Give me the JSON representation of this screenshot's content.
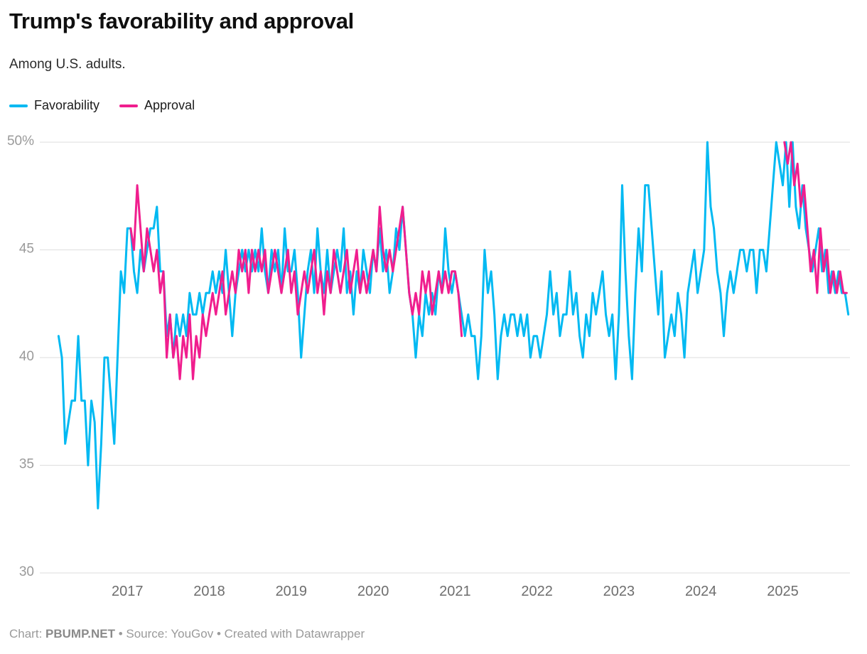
{
  "header": {
    "title": "Trump's favorability and approval",
    "subtitle": "Among U.S. adults."
  },
  "footer": {
    "chart_label_prefix": "Chart: ",
    "brand": "PBUMP.NET",
    "rest": " • Source: YouGov • Created with Datawrapper"
  },
  "chart_data": {
    "type": "line",
    "title": "Trump's favorability and approval",
    "subtitle": "Among U.S. adults.",
    "legend_position": "top-left",
    "grid": "horizontal",
    "grid_color": "#dedede",
    "ytick_label_color": "#9a9a9a",
    "xtick_label_color": "#6e6e6e",
    "xlabel": "",
    "ylabel": "",
    "xlim": [
      2016.0,
      2025.82
    ],
    "ylim": [
      30,
      50
    ],
    "yticks": [
      30,
      35,
      40,
      45,
      50
    ],
    "ytick_labels": [
      "30",
      "35",
      "40",
      "45",
      "50%"
    ],
    "xticks": [
      2017,
      2018,
      2019,
      2020,
      2021,
      2022,
      2023,
      2024,
      2025
    ],
    "xtick_labels": [
      "2017",
      "2018",
      "2019",
      "2020",
      "2021",
      "2022",
      "2023",
      "2024",
      "2025"
    ],
    "series": [
      {
        "name": "Favorability",
        "color": "#00b9f2",
        "segments": [
          {
            "start": 2016.16,
            "step": 0.04,
            "values": [
              41,
              40,
              36,
              37,
              38,
              38,
              41,
              38,
              38,
              35,
              38,
              37,
              33,
              36,
              40,
              40,
              38,
              36,
              40,
              44,
              43,
              46,
              46,
              44,
              43,
              45,
              44,
              45,
              46,
              46,
              47,
              44,
              44,
              41,
              42,
              40,
              42,
              41,
              42,
              41,
              43,
              42,
              42,
              43,
              42,
              43,
              43,
              44,
              43,
              44,
              43,
              45,
              43,
              41,
              43,
              44,
              45,
              44,
              45,
              44,
              45,
              44,
              46,
              44,
              43,
              45,
              44,
              45,
              43,
              46,
              44,
              44,
              45,
              43,
              40,
              42,
              44,
              45,
              43,
              46,
              44,
              43,
              45,
              43,
              44,
              45,
              44,
              46,
              43,
              44,
              42,
              44,
              43,
              45,
              44,
              43,
              45,
              44,
              46,
              44,
              45,
              43,
              44,
              46,
              45,
              47,
              45,
              43,
              42,
              40,
              42,
              41,
              43,
              42,
              43,
              42,
              44,
              43,
              46,
              44,
              43,
              44,
              43,
              42,
              41,
              42,
              41,
              41,
              39,
              41,
              45,
              43,
              44,
              42,
              39,
              41,
              42,
              41,
              42,
              42,
              41,
              42,
              41,
              42,
              40,
              41,
              41,
              40,
              41,
              42,
              44,
              42,
              43,
              41,
              42,
              42,
              44,
              42,
              43,
              41,
              40,
              42,
              41,
              43,
              42,
              43,
              44,
              42,
              41,
              42,
              39,
              42,
              48,
              44,
              41,
              39,
              43,
              46,
              44,
              48,
              48,
              46,
              44,
              42,
              44,
              40,
              41,
              42,
              41,
              43,
              42,
              40,
              43,
              44,
              45,
              43,
              44,
              45,
              50,
              47,
              46,
              44,
              43,
              41,
              43,
              44,
              43,
              44,
              45,
              45,
              44,
              45,
              45,
              43,
              45,
              45,
              44,
              46,
              48,
              50,
              49,
              48,
              50,
              47,
              50,
              47,
              46,
              48,
              46,
              45,
              44,
              45,
              46,
              44,
              45,
              43,
              44,
              43,
              44,
              43,
              43,
              42
            ]
          }
        ]
      },
      {
        "name": "Approval",
        "color": "#f01e8e",
        "segments": [
          {
            "start": 2017.04,
            "step": 0.04,
            "values": [
              46,
              45,
              48,
              46,
              44,
              46,
              45,
              44,
              45,
              43,
              44,
              40,
              42,
              40,
              41,
              39,
              41,
              40,
              42,
              39,
              41,
              40,
              42,
              41,
              42,
              43,
              42,
              43,
              44,
              42,
              43,
              44,
              43,
              45,
              44,
              45,
              43,
              45,
              44,
              45,
              44,
              45,
              43,
              44,
              45,
              44,
              43,
              44,
              45,
              43,
              44,
              42,
              43,
              44,
              43,
              44,
              45,
              43,
              44,
              42,
              44,
              43,
              45,
              44,
              43,
              44,
              45,
              43,
              44,
              45,
              43,
              44,
              43,
              44,
              45,
              44,
              47,
              45,
              44,
              45,
              44,
              45,
              46,
              47,
              45,
              43,
              42,
              43,
              42,
              44,
              43,
              44,
              42,
              43,
              44,
              43,
              44,
              43,
              44,
              44,
              43,
              41
            ]
          },
          {
            "start": 2025.02,
            "step": 0.04,
            "values": [
              50,
              49,
              50,
              48,
              49,
              47,
              48,
              46,
              44,
              45,
              43,
              46,
              44,
              45,
              43,
              44,
              43,
              44,
              43,
              43
            ]
          }
        ]
      }
    ]
  }
}
